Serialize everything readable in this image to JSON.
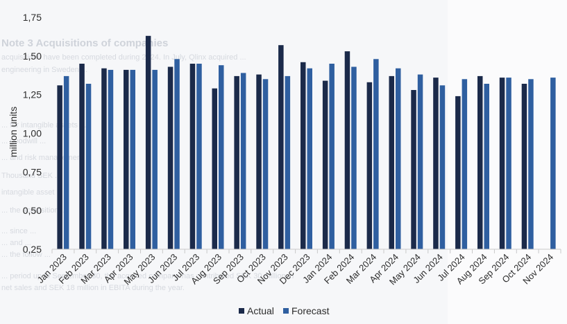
{
  "background_text": {
    "heading": "Note 3 Acquisitions of companies",
    "lines": [
      "acquisitions have been completed during 2024. In July, Qlinx acquired ...",
      "engineering in Sweden ...",
      "... for intangible assets ...",
      "... goodwill ...",
      "... and risk management ...",
      "Thousand SEK ...",
      "intangible asset ...",
      "... the acquisition ...",
      "... since ...",
      "... and ...",
      "... the follow ...",
      "... period up to September 30, the acquired company has contributed SEK 30 million in",
      "net sales and SEK 18 million in EBITA during the year."
    ]
  },
  "chart_data": {
    "type": "bar",
    "title": "",
    "xlabel": "",
    "ylabel": "million units",
    "ylim": [
      0.25,
      1.75
    ],
    "yticks": [
      "0,25",
      "0,50",
      "0,75",
      "1,00",
      "1,25",
      "1,50",
      "1,75"
    ],
    "ytick_values": [
      0.25,
      0.5,
      0.75,
      1.0,
      1.25,
      1.5,
      1.75
    ],
    "grid": false,
    "legend_position": "bottom-center",
    "categories": [
      "Jan 2023",
      "Feb 2023",
      "Mar 2023",
      "Apr 2023",
      "May 2023",
      "Jun 2023",
      "Jul 2023",
      "Aug 2023",
      "Sep 2023",
      "Oct 2023",
      "Nov 2023",
      "Dec 2023",
      "Jan 2024",
      "Feb 2024",
      "Mar 2024",
      "Apr 2024",
      "May 2024",
      "Jun 2024",
      "Jul 2024",
      "Aug 2024",
      "Sep 2024",
      "Oct 2024",
      "Nov 2024"
    ],
    "series": [
      {
        "name": "Actual",
        "color": "#1b2a4a",
        "values": [
          1.31,
          1.45,
          1.42,
          1.41,
          1.63,
          1.43,
          1.45,
          1.29,
          1.37,
          1.38,
          1.57,
          1.46,
          1.34,
          1.53,
          1.33,
          1.37,
          1.28,
          1.36,
          1.24,
          1.37,
          1.36,
          1.32,
          null
        ]
      },
      {
        "name": "Forecast",
        "color": "#2f5fa0",
        "values": [
          1.37,
          1.32,
          1.41,
          1.41,
          1.41,
          1.48,
          1.45,
          1.44,
          1.39,
          1.35,
          1.37,
          1.42,
          1.45,
          1.43,
          1.48,
          1.42,
          1.38,
          1.31,
          1.35,
          1.32,
          1.36,
          1.35,
          1.36
        ]
      }
    ]
  }
}
